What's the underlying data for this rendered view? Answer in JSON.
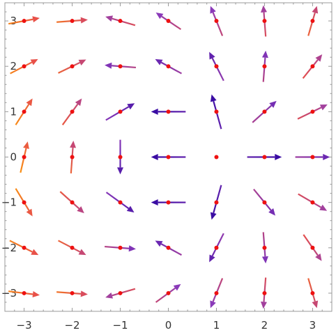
{
  "chart_data": {
    "type": "vector-field",
    "title": "",
    "xlabel": "",
    "ylabel": "",
    "xlim": [
      -3.4,
      3.4
    ],
    "ylim": [
      -3.4,
      3.4
    ],
    "x_ticks": [
      -3,
      -2,
      -1,
      0,
      1,
      2,
      3
    ],
    "y_ticks": [
      -3,
      -2,
      -1,
      0,
      1,
      2,
      3
    ],
    "x_tick_labels": [
      "−3",
      "−2",
      "−1",
      "0",
      "1",
      "2",
      "3"
    ],
    "y_tick_labels": [
      "−3",
      "−2",
      "−1",
      "0",
      "1",
      "2",
      "3"
    ],
    "grid": false,
    "frame": true,
    "sample_point_color": "#ee1111",
    "color_scale": [
      "#ffa500",
      "#e8504a",
      "#8a3ab9",
      "#3a0ca3"
    ],
    "vectors": [
      {
        "x": -3,
        "y": 3,
        "dx": 0.65,
        "dy": 0.12,
        "mag": 0.15
      },
      {
        "x": -2,
        "y": 3,
        "dx": 0.65,
        "dy": 0.05,
        "mag": 0.22
      },
      {
        "x": -1,
        "y": 3,
        "dx": -0.62,
        "dy": 0.18,
        "mag": 0.45
      },
      {
        "x": 0,
        "y": 3,
        "dx": -0.52,
        "dy": 0.35,
        "mag": 0.55
      },
      {
        "x": 1,
        "y": 3,
        "dx": -0.25,
        "dy": 0.62,
        "mag": 0.55
      },
      {
        "x": 2,
        "y": 3,
        "dx": -0.05,
        "dy": 0.65,
        "mag": 0.45
      },
      {
        "x": 3,
        "y": 3,
        "dx": 0.18,
        "dy": 0.62,
        "mag": 0.3
      },
      {
        "x": -3,
        "y": 2,
        "dx": 0.58,
        "dy": 0.3,
        "mag": 0.15
      },
      {
        "x": -2,
        "y": 2,
        "dx": 0.58,
        "dy": 0.28,
        "mag": 0.3
      },
      {
        "x": -1,
        "y": 2,
        "dx": -0.65,
        "dy": 0.05,
        "mag": 0.6
      },
      {
        "x": 0,
        "y": 2,
        "dx": -0.55,
        "dy": 0.3,
        "mag": 0.7
      },
      {
        "x": 1,
        "y": 2,
        "dx": -0.3,
        "dy": 0.6,
        "mag": 0.75
      },
      {
        "x": 2,
        "y": 2,
        "dx": 0.05,
        "dy": 0.65,
        "mag": 0.6
      },
      {
        "x": 3,
        "y": 2,
        "dx": 0.4,
        "dy": 0.5,
        "mag": 0.4
      },
      {
        "x": -3,
        "y": 1,
        "dx": 0.35,
        "dy": 0.55,
        "mag": 0.12
      },
      {
        "x": -2,
        "y": 1,
        "dx": 0.4,
        "dy": 0.55,
        "mag": 0.35
      },
      {
        "x": -1,
        "y": 1,
        "dx": 0.6,
        "dy": 0.35,
        "mag": 0.8
      },
      {
        "x": 0,
        "y": 1,
        "dx": -0.72,
        "dy": 0.0,
        "mag": 0.98
      },
      {
        "x": 1,
        "y": 1,
        "dx": -0.2,
        "dy": 0.72,
        "mag": 0.98
      },
      {
        "x": 2,
        "y": 1,
        "dx": 0.5,
        "dy": 0.45,
        "mag": 0.65
      },
      {
        "x": 3,
        "y": 1,
        "dx": 0.62,
        "dy": 0.3,
        "mag": 0.45
      },
      {
        "x": -3,
        "y": 0,
        "dx": 0.15,
        "dy": 0.65,
        "mag": 0.1
      },
      {
        "x": -2,
        "y": 0,
        "dx": 0.05,
        "dy": 0.68,
        "mag": 0.3
      },
      {
        "x": -1,
        "y": 0,
        "dx": 0.0,
        "dy": -0.72,
        "mag": 0.8
      },
      {
        "x": 0,
        "y": 0,
        "dx": -0.72,
        "dy": 0.0,
        "mag": 0.98
      },
      {
        "x": 1,
        "y": 0,
        "dx": 0.0,
        "dy": 0.0,
        "mag": 0.0
      },
      {
        "x": 2,
        "y": 0,
        "dx": 0.72,
        "dy": 0.0,
        "mag": 0.98
      },
      {
        "x": 3,
        "y": 0,
        "dx": 0.72,
        "dy": 0.0,
        "mag": 0.7
      },
      {
        "x": -3,
        "y": -1,
        "dx": 0.35,
        "dy": -0.58,
        "mag": 0.12
      },
      {
        "x": -2,
        "y": -1,
        "dx": 0.5,
        "dy": -0.45,
        "mag": 0.35
      },
      {
        "x": -1,
        "y": -1,
        "dx": 0.58,
        "dy": -0.42,
        "mag": 0.8
      },
      {
        "x": 0,
        "y": -1,
        "dx": -0.72,
        "dy": 0.0,
        "mag": 0.98
      },
      {
        "x": 1,
        "y": -1,
        "dx": -0.2,
        "dy": -0.72,
        "mag": 0.98
      },
      {
        "x": 2,
        "y": -1,
        "dx": 0.45,
        "dy": -0.55,
        "mag": 0.65
      },
      {
        "x": 3,
        "y": -1,
        "dx": 0.6,
        "dy": -0.35,
        "mag": 0.45
      },
      {
        "x": -3,
        "y": -2,
        "dx": 0.6,
        "dy": -0.3,
        "mag": 0.15
      },
      {
        "x": -2,
        "y": -2,
        "dx": 0.58,
        "dy": -0.3,
        "mag": 0.3
      },
      {
        "x": -1,
        "y": -2,
        "dx": 0.65,
        "dy": -0.05,
        "mag": 0.6
      },
      {
        "x": 0,
        "y": -2,
        "dx": -0.55,
        "dy": 0.3,
        "mag": 0.7
      },
      {
        "x": 1,
        "y": -2,
        "dx": -0.3,
        "dy": -0.6,
        "mag": 0.75
      },
      {
        "x": 2,
        "y": -2,
        "dx": 0.05,
        "dy": -0.65,
        "mag": 0.6
      },
      {
        "x": 3,
        "y": -2,
        "dx": 0.38,
        "dy": -0.55,
        "mag": 0.4
      },
      {
        "x": -3,
        "y": -3,
        "dx": 0.65,
        "dy": -0.08,
        "mag": 0.15
      },
      {
        "x": -2,
        "y": -3,
        "dx": 0.65,
        "dy": -0.05,
        "mag": 0.22
      },
      {
        "x": -1,
        "y": -3,
        "dx": -0.62,
        "dy": -0.18,
        "mag": 0.45
      },
      {
        "x": 0,
        "y": -3,
        "dx": 0.52,
        "dy": 0.38,
        "mag": 0.55
      },
      {
        "x": 1,
        "y": -3,
        "dx": -0.25,
        "dy": -0.62,
        "mag": 0.55
      },
      {
        "x": 2,
        "y": -3,
        "dx": -0.05,
        "dy": -0.65,
        "mag": 0.45
      },
      {
        "x": 3,
        "y": -3,
        "dx": 0.18,
        "dy": -0.62,
        "mag": 0.3
      }
    ]
  }
}
